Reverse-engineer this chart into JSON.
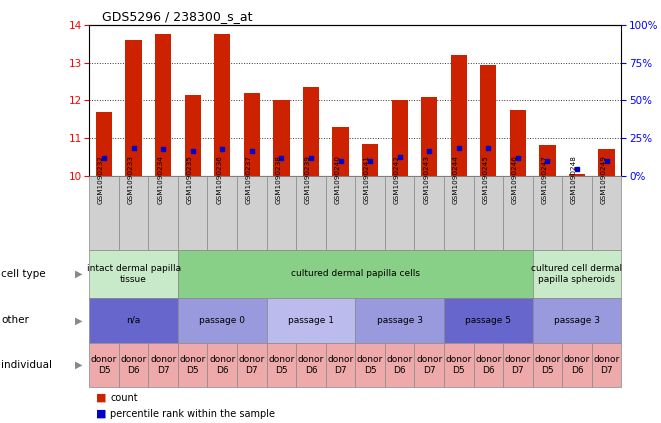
{
  "title": "GDS5296 / 238300_s_at",
  "samples": [
    "GSM1090232",
    "GSM1090233",
    "GSM1090234",
    "GSM1090235",
    "GSM1090236",
    "GSM1090237",
    "GSM1090238",
    "GSM1090239",
    "GSM1090240",
    "GSM1090241",
    "GSM1090242",
    "GSM1090243",
    "GSM1090244",
    "GSM1090245",
    "GSM1090246",
    "GSM1090247",
    "GSM1090248",
    "GSM1090249"
  ],
  "count_values": [
    11.7,
    13.6,
    13.78,
    12.15,
    13.78,
    12.2,
    12.0,
    12.35,
    11.3,
    10.85,
    12.0,
    12.1,
    13.2,
    12.95,
    11.75,
    10.82,
    10.05,
    10.7
  ],
  "percentile_values": [
    10.47,
    10.73,
    10.72,
    10.65,
    10.7,
    10.65,
    10.48,
    10.48,
    10.38,
    10.38,
    10.5,
    10.65,
    10.73,
    10.73,
    10.48,
    10.38,
    10.18,
    10.38
  ],
  "ylim_left": [
    10,
    14
  ],
  "ylim_right": [
    0,
    100
  ],
  "yticks_left": [
    10,
    11,
    12,
    13,
    14
  ],
  "yticks_right": [
    0,
    25,
    50,
    75,
    100
  ],
  "ytick_right_labels": [
    "0%",
    "25%",
    "50%",
    "75%",
    "100%"
  ],
  "bar_color": "#cc2200",
  "percentile_color": "#0000cc",
  "cell_type_groups": [
    {
      "label": "intact dermal papilla\ntissue",
      "start": 0,
      "end": 3,
      "color": "#c8eac8"
    },
    {
      "label": "cultured dermal papilla cells",
      "start": 3,
      "end": 15,
      "color": "#88d088"
    },
    {
      "label": "cultured cell dermal\npapilla spheroids",
      "start": 15,
      "end": 18,
      "color": "#c8eac8"
    }
  ],
  "other_groups": [
    {
      "label": "n/a",
      "start": 0,
      "end": 3,
      "color": "#6666cc"
    },
    {
      "label": "passage 0",
      "start": 3,
      "end": 6,
      "color": "#9999dd"
    },
    {
      "label": "passage 1",
      "start": 6,
      "end": 9,
      "color": "#bbbbee"
    },
    {
      "label": "passage 3",
      "start": 9,
      "end": 12,
      "color": "#9999dd"
    },
    {
      "label": "passage 5",
      "start": 12,
      "end": 15,
      "color": "#6666cc"
    },
    {
      "label": "passage 3",
      "start": 15,
      "end": 18,
      "color": "#9999dd"
    }
  ],
  "individual_labels": [
    "donor\nD5",
    "donor\nD6",
    "donor\nD7",
    "donor\nD5",
    "donor\nD6",
    "donor\nD7",
    "donor\nD5",
    "donor\nD6",
    "donor\nD7",
    "donor\nD5",
    "donor\nD6",
    "donor\nD7",
    "donor\nD5",
    "donor\nD6",
    "donor\nD7",
    "donor\nD5",
    "donor\nD6",
    "donor\nD7"
  ],
  "individual_color": "#eeaaaa",
  "sample_bg_color": "#d0d0d0",
  "bg_color": "#ffffff",
  "bar_width": 0.55,
  "row_labels": [
    "cell type",
    "other",
    "individual"
  ],
  "arrow_color": "#888888"
}
